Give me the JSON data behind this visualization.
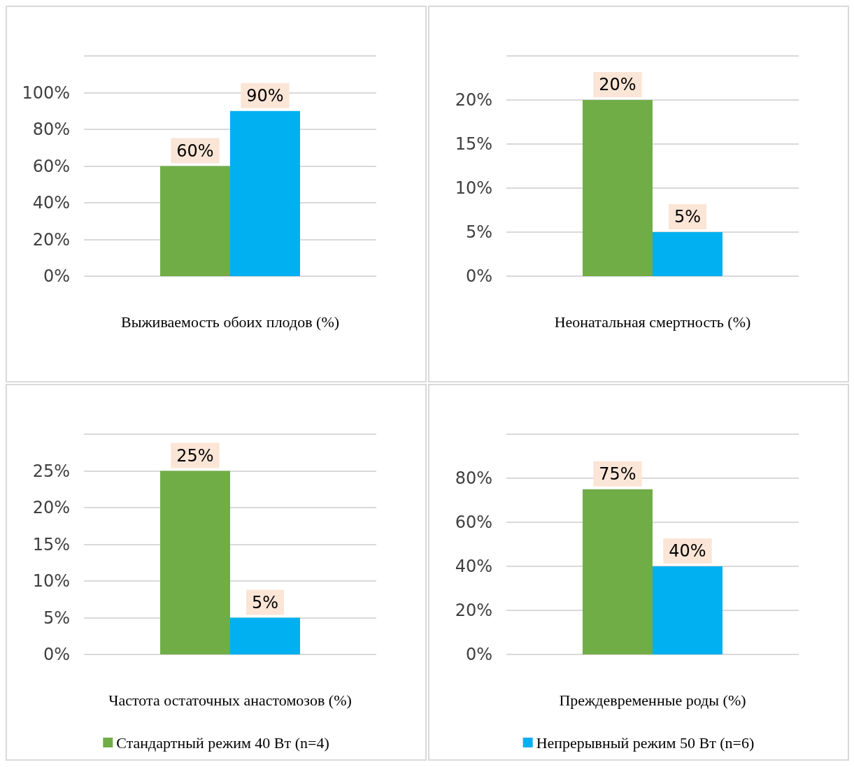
{
  "chart_data": [
    {
      "type": "bar",
      "xlabel": "Выживаемость обоих плодов (%)",
      "categories": [
        null
      ],
      "series": [
        {
          "color": "#70ad47",
          "values": [
            60
          ],
          "value_labels": [
            "60%"
          ]
        },
        {
          "color": "#00b0f0",
          "values": [
            90
          ],
          "value_labels": [
            "90%"
          ]
        }
      ],
      "ylim": [
        0,
        120
      ],
      "yticks": [
        {
          "value": 0,
          "label": "0%"
        },
        {
          "value": 20,
          "label": "20%"
        },
        {
          "value": 40,
          "label": "40%"
        },
        {
          "value": 60,
          "label": "60%"
        },
        {
          "value": 80,
          "label": "80%"
        },
        {
          "value": 100,
          "label": "100%"
        },
        {
          "value": 120,
          "label": null
        }
      ],
      "grid": "y"
    },
    {
      "type": "bar",
      "xlabel": "Неонатальная смертность (%)",
      "categories": [
        null
      ],
      "series": [
        {
          "color": "#70ad47",
          "values": [
            20
          ],
          "value_labels": [
            "20%"
          ]
        },
        {
          "color": "#00b0f0",
          "values": [
            5
          ],
          "value_labels": [
            "5%"
          ]
        }
      ],
      "ylim": [
        0,
        25
      ],
      "yticks": [
        {
          "value": 0,
          "label": "0%"
        },
        {
          "value": 5,
          "label": "5%"
        },
        {
          "value": 10,
          "label": "10%"
        },
        {
          "value": 15,
          "label": "15%"
        },
        {
          "value": 20,
          "label": "20%"
        },
        {
          "value": 25,
          "label": null
        }
      ],
      "grid": "y"
    },
    {
      "type": "bar",
      "xlabel": "Частота остаточных анастомозов (%)",
      "categories": [
        null
      ],
      "series": [
        {
          "name": "Стандартный режим 40 Вт (n=4)",
          "color": "#70ad47",
          "values": [
            25
          ],
          "value_labels": [
            "25%"
          ]
        },
        {
          "color": "#00b0f0",
          "values": [
            5
          ],
          "value_labels": [
            "5%"
          ]
        }
      ],
      "ylim": [
        0,
        30
      ],
      "yticks": [
        {
          "value": 0,
          "label": "0%"
        },
        {
          "value": 5,
          "label": "5%"
        },
        {
          "value": 10,
          "label": "10%"
        },
        {
          "value": 15,
          "label": "15%"
        },
        {
          "value": 20,
          "label": "20%"
        },
        {
          "value": 25,
          "label": "25%"
        },
        {
          "value": 30,
          "label": null
        }
      ],
      "grid": "y",
      "legend": "bottom"
    },
    {
      "type": "bar",
      "xlabel": "Преждевременные роды (%)",
      "categories": [
        null
      ],
      "series": [
        {
          "color": "#70ad47",
          "values": [
            75
          ],
          "value_labels": [
            "75%"
          ]
        },
        {
          "name": "Непрерывный режим 50 Вт (n=6)",
          "color": "#00b0f0",
          "values": [
            40
          ],
          "value_labels": [
            "40%"
          ]
        }
      ],
      "ylim": [
        0,
        100
      ],
      "yticks": [
        {
          "value": 0,
          "label": "0%"
        },
        {
          "value": 20,
          "label": "20%"
        },
        {
          "value": 40,
          "label": "40%"
        },
        {
          "value": 60,
          "label": "60%"
        },
        {
          "value": 80,
          "label": "80%"
        },
        {
          "value": 100,
          "label": null
        }
      ],
      "grid": "y",
      "legend": "bottom"
    }
  ]
}
